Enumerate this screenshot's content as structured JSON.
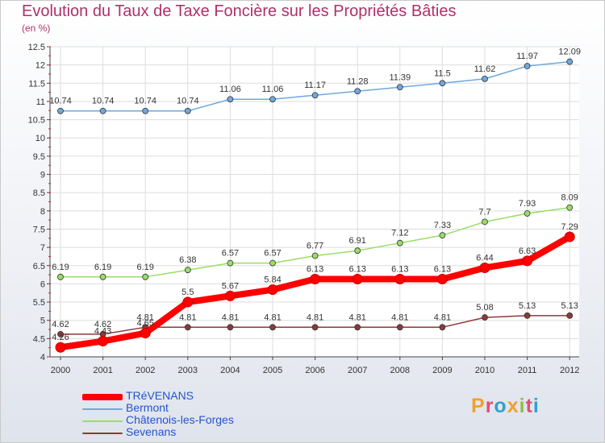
{
  "header": {
    "title": "Evolution du Taux de Taxe Foncière sur les Propriétés Bâties",
    "unit": "(en %)"
  },
  "logo": {
    "text": "Proxiti",
    "letters": [
      "P",
      "r",
      "o",
      "x",
      "i",
      "t",
      "i"
    ],
    "colors": [
      "#f0a030",
      "#e05070",
      "#30a0d0",
      "#f0a030",
      "#90c040",
      "#e05070",
      "#30a0d0"
    ]
  },
  "chart_data": {
    "type": "line",
    "title": "Evolution du Taux de Taxe Foncière sur les Propriétés Bâties",
    "ylabel": "(en %)",
    "x": [
      "2000",
      "2001",
      "2002",
      "2003",
      "2004",
      "2005",
      "2006",
      "2007",
      "2008",
      "2009",
      "2010",
      "2011",
      "2012"
    ],
    "ylim": [
      4,
      12.5
    ],
    "yticks": [
      "4",
      "4.5",
      "5",
      "5.5",
      "6",
      "6.5",
      "7",
      "7.5",
      "8",
      "8.5",
      "9",
      "9.5",
      "10",
      "10.5",
      "11",
      "11.5",
      "12",
      "12.5"
    ],
    "grid": true,
    "legend": "bottom-left",
    "series": [
      {
        "name": "TRéVENANS",
        "color": "#ff0000",
        "values": [
          4.26,
          4.43,
          4.65,
          5.5,
          5.67,
          5.84,
          6.13,
          6.13,
          6.13,
          6.13,
          6.44,
          6.63,
          7.29
        ],
        "labels": [
          "4.26",
          "4.43",
          "4.65",
          "5.5",
          "5.67",
          "5.84",
          "6.13",
          "6.13",
          "6.13",
          "6.13",
          "6.44",
          "6.63",
          "7.29"
        ]
      },
      {
        "name": "Bermont",
        "color": "#6fa8dc",
        "values": [
          10.74,
          10.74,
          10.74,
          10.74,
          11.06,
          11.06,
          11.17,
          11.28,
          11.39,
          11.5,
          11.62,
          11.97,
          12.09
        ],
        "labels": [
          "10.74",
          "10.74",
          "10.74",
          "10.74",
          "11.06",
          "11.06",
          "11.17",
          "11.28",
          "11.39",
          "11.5",
          "11.62",
          "11.97",
          "12.09"
        ]
      },
      {
        "name": "Châtenois-les-Forges",
        "color": "#99dd66",
        "values": [
          6.19,
          6.19,
          6.19,
          6.38,
          6.57,
          6.57,
          6.77,
          6.91,
          7.12,
          7.33,
          7.7,
          7.93,
          8.09
        ],
        "labels": [
          "6.19",
          "6.19",
          "6.19",
          "6.38",
          "6.57",
          "6.57",
          "6.77",
          "6.91",
          "7.12",
          "7.33",
          "7.7",
          "7.93",
          "8.09"
        ]
      },
      {
        "name": "Sevenans",
        "color": "#8b3a3a",
        "values": [
          4.62,
          4.62,
          4.81,
          4.81,
          4.81,
          4.81,
          4.81,
          4.81,
          4.81,
          4.81,
          5.08,
          5.13,
          5.13
        ],
        "labels": [
          "4.62",
          "4.62",
          "4.81",
          "4.81",
          "4.81",
          "4.81",
          "4.81",
          "4.81",
          "4.81",
          "4.81",
          "5.08",
          "5.13",
          "5.13"
        ]
      }
    ]
  }
}
